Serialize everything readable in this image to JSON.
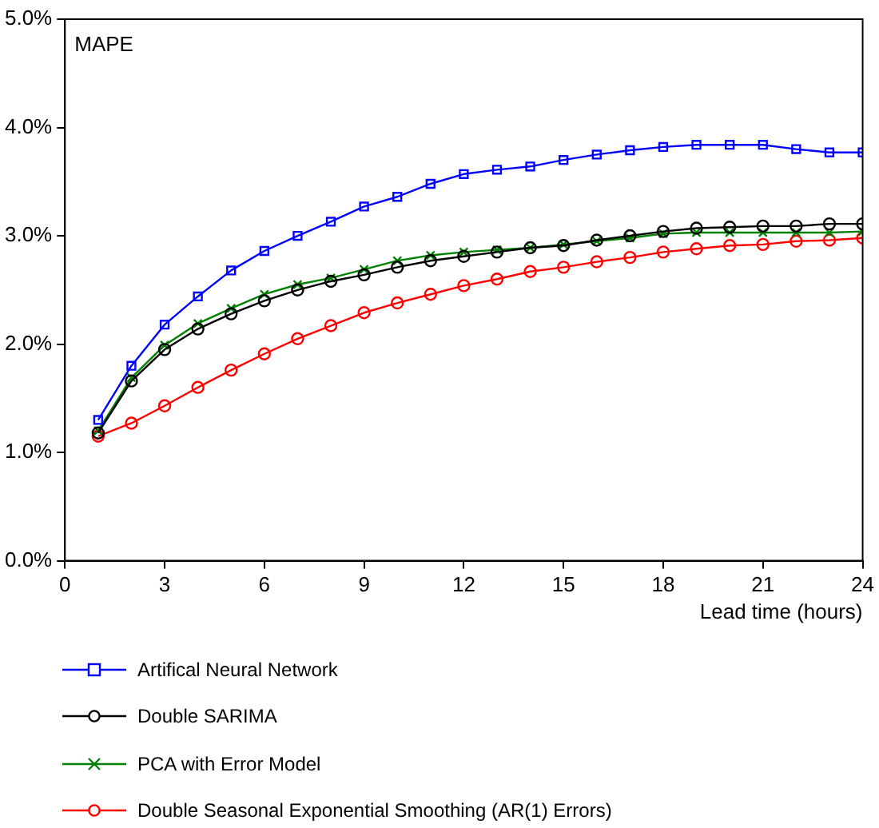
{
  "chart_data": {
    "type": "line",
    "xlabel": "Lead time (hours)",
    "annotations": [
      "MAPE"
    ],
    "x": [
      1,
      2,
      3,
      4,
      5,
      6,
      7,
      8,
      9,
      10,
      11,
      12,
      13,
      14,
      15,
      16,
      17,
      18,
      19,
      20,
      21,
      22,
      23,
      24
    ],
    "xlim": [
      0,
      24
    ],
    "xticks": [
      0,
      3,
      6,
      9,
      12,
      15,
      18,
      21,
      24
    ],
    "ylim": [
      0,
      5
    ],
    "yticks": [
      {
        "value": 0,
        "label": "0.0%"
      },
      {
        "value": 1,
        "label": "1.0%"
      },
      {
        "value": 2,
        "label": "2.0%"
      },
      {
        "value": 3,
        "label": "3.0%"
      },
      {
        "value": 4,
        "label": "4.0%"
      },
      {
        "value": 5,
        "label": "5.0%"
      }
    ],
    "grid": false,
    "legend": "bottom",
    "line_style": "solid",
    "series": [
      {
        "name": "Artifical Neural Network",
        "color": "#0000ff",
        "marker": "square",
        "values": [
          1.3,
          1.8,
          2.18,
          2.44,
          2.68,
          2.86,
          3.0,
          3.13,
          3.27,
          3.36,
          3.48,
          3.57,
          3.61,
          3.64,
          3.7,
          3.75,
          3.79,
          3.82,
          3.84,
          3.84,
          3.84,
          3.8,
          3.77,
          3.77
        ]
      },
      {
        "name": "Double SARIMA",
        "color": "#000000",
        "marker": "circle",
        "values": [
          1.18,
          1.66,
          1.95,
          2.14,
          2.28,
          2.4,
          2.5,
          2.58,
          2.64,
          2.71,
          2.77,
          2.81,
          2.85,
          2.89,
          2.91,
          2.96,
          3.0,
          3.04,
          3.07,
          3.08,
          3.09,
          3.09,
          3.11,
          3.11
        ]
      },
      {
        "name": "PCA with Error Model",
        "color": "#008000",
        "marker": "cross",
        "values": [
          1.2,
          1.69,
          1.99,
          2.19,
          2.33,
          2.46,
          2.55,
          2.61,
          2.69,
          2.77,
          2.82,
          2.85,
          2.87,
          2.89,
          2.92,
          2.95,
          2.98,
          3.02,
          3.03,
          3.03,
          3.03,
          3.03,
          3.03,
          3.04
        ]
      },
      {
        "name": "Double Seasonal Exponential Smoothing (AR(1) Errors)",
        "color": "#ff0000",
        "marker": "circle",
        "values": [
          1.15,
          1.27,
          1.43,
          1.6,
          1.76,
          1.91,
          2.05,
          2.17,
          2.29,
          2.38,
          2.46,
          2.54,
          2.6,
          2.67,
          2.71,
          2.76,
          2.8,
          2.85,
          2.88,
          2.91,
          2.92,
          2.95,
          2.96,
          2.98
        ]
      }
    ]
  }
}
